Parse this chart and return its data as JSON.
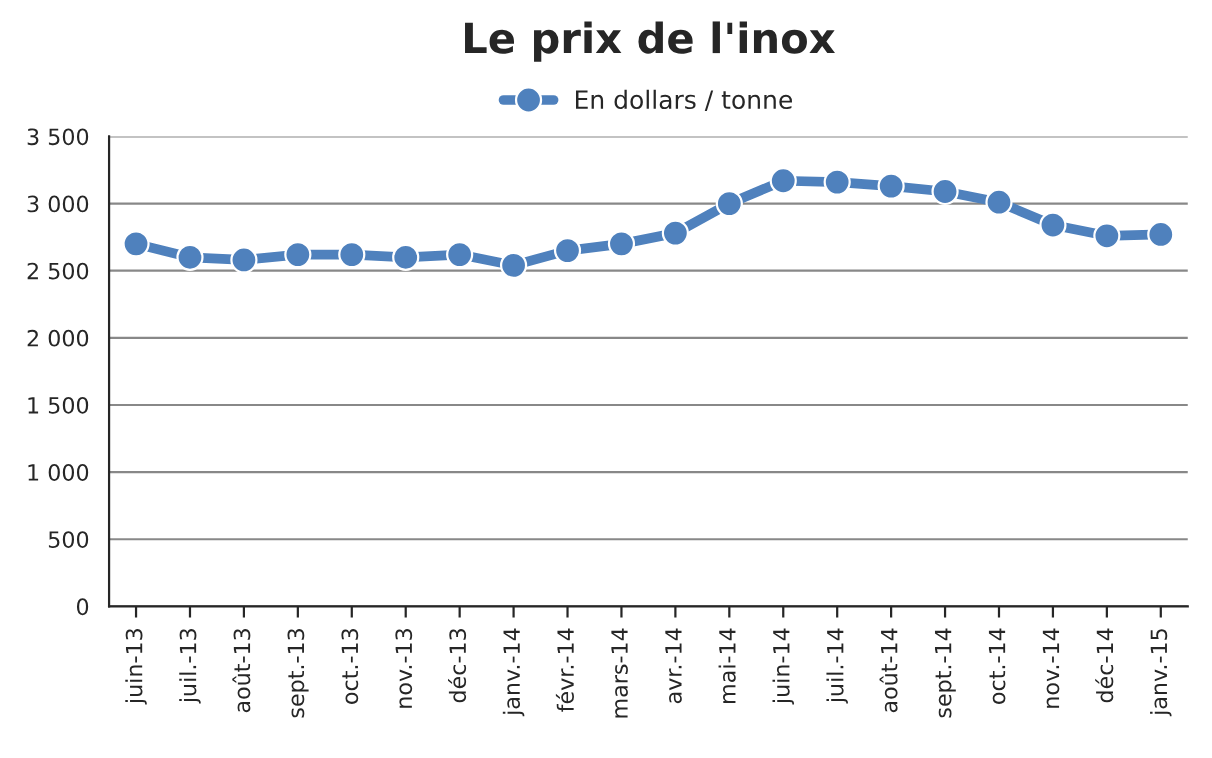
{
  "chart_data": {
    "type": "line",
    "title": "Le prix de l'inox",
    "categories": [
      "juin-13",
      "juil.-13",
      "août-13",
      "sept.-13",
      "oct.-13",
      "nov.-13",
      "déc-13",
      "janv.-14",
      "févr.-14",
      "mars-14",
      "avr.-14",
      "mai-14",
      "juin-14",
      "juil.-14",
      "août-14",
      "sept.-14",
      "oct.-14",
      "nov.-14",
      "déc-14",
      "janv.-15"
    ],
    "series": [
      {
        "name": "En dollars / tonne",
        "color": "#4f81bd",
        "values": [
          2700,
          2600,
          2580,
          2620,
          2620,
          2600,
          2620,
          2540,
          2650,
          2700,
          2780,
          3000,
          3170,
          3160,
          3130,
          3090,
          3010,
          2840,
          2760,
          2770
        ]
      }
    ],
    "ylim": [
      0,
      3500
    ],
    "yticks": [
      {
        "value": 0,
        "label": "0"
      },
      {
        "value": 500,
        "label": "500"
      },
      {
        "value": 1000,
        "label": "1 000"
      },
      {
        "value": 1500,
        "label": "1 500"
      },
      {
        "value": 2000,
        "label": "2 000"
      },
      {
        "value": 2500,
        "label": "2 500"
      },
      {
        "value": 3000,
        "label": "3 000"
      },
      {
        "value": 3500,
        "label": "3 500"
      }
    ],
    "grid": "y",
    "legend": "top",
    "marker": "circle",
    "line_style": "solid"
  }
}
